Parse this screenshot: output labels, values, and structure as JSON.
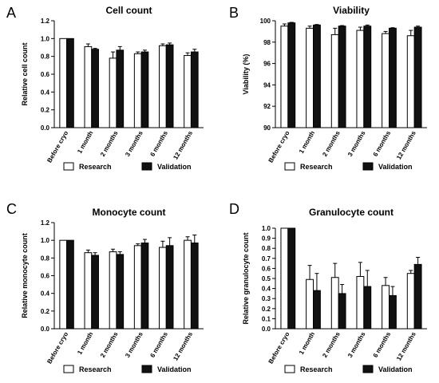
{
  "legend": {
    "research_label": "Research",
    "validation_label": "Validation"
  },
  "colors": {
    "research": "#ffffff",
    "validation": "#111111",
    "axis": "#000000"
  },
  "chart_data": [
    {
      "panel": "A",
      "type": "bar",
      "title": "Cell count",
      "ylabel": "Relative cell count",
      "xlabel": "",
      "ylim": [
        0,
        1.2
      ],
      "yticks": [
        "0.0",
        "0.2",
        "0.4",
        "0.6",
        "0.8",
        "1.0",
        "1.2"
      ],
      "categories": [
        "Before cryo",
        "1 month",
        "2 months",
        "3 months",
        "6 months",
        "12 months"
      ],
      "series": [
        {
          "name": "Research",
          "values": [
            1.0,
            0.91,
            0.78,
            0.83,
            0.92,
            0.81
          ],
          "errors": [
            0.0,
            0.03,
            0.07,
            0.02,
            0.02,
            0.03
          ]
        },
        {
          "name": "Validation",
          "values": [
            1.0,
            0.88,
            0.87,
            0.85,
            0.93,
            0.85
          ],
          "errors": [
            0.0,
            0.01,
            0.04,
            0.02,
            0.02,
            0.03
          ]
        }
      ],
      "legend": "bottom"
    },
    {
      "panel": "B",
      "type": "bar",
      "title": "Viability",
      "ylabel": "Viability (%)",
      "xlabel": "",
      "ylim": [
        90,
        100
      ],
      "yticks": [
        "90",
        "92",
        "94",
        "96",
        "98",
        "100"
      ],
      "categories": [
        "Before cryo",
        "1 month",
        "2 months",
        "3 months",
        "6 months",
        "12 months"
      ],
      "series": [
        {
          "name": "Research",
          "values": [
            99.5,
            99.3,
            98.7,
            99.1,
            98.8,
            98.6
          ],
          "errors": [
            0.2,
            0.2,
            0.6,
            0.3,
            0.2,
            0.5
          ]
        },
        {
          "name": "Validation",
          "values": [
            99.8,
            99.6,
            99.5,
            99.5,
            99.3,
            99.4
          ],
          "errors": [
            0.05,
            0.05,
            0.05,
            0.1,
            0.05,
            0.1
          ]
        }
      ],
      "legend": "bottom"
    },
    {
      "panel": "C",
      "type": "bar",
      "title": "Monocyte count",
      "ylabel": "Relative monocyte count",
      "xlabel": "",
      "ylim": [
        0,
        1.2
      ],
      "yticks": [
        "0.0",
        "0.2",
        "0.4",
        "0.6",
        "0.8",
        "1.0",
        "1.2"
      ],
      "categories": [
        "Before cryo",
        "1 month",
        "2 months",
        "3 months",
        "6 months",
        "12 months"
      ],
      "series": [
        {
          "name": "Research",
          "values": [
            1.0,
            0.86,
            0.87,
            0.94,
            0.92,
            1.0
          ],
          "errors": [
            0.0,
            0.03,
            0.03,
            0.02,
            0.07,
            0.04
          ]
        },
        {
          "name": "Validation",
          "values": [
            1.0,
            0.83,
            0.84,
            0.97,
            0.94,
            0.97
          ],
          "errors": [
            0.0,
            0.03,
            0.03,
            0.04,
            0.09,
            0.09
          ]
        }
      ],
      "legend": "bottom"
    },
    {
      "panel": "D",
      "type": "bar",
      "title": "Granulocyte count",
      "ylabel": "Relative granulocyte count",
      "xlabel": "",
      "ylim": [
        0,
        1.0
      ],
      "yticks": [
        "0.0",
        "0.1",
        "0.2",
        "0.3",
        "0.4",
        "0.5",
        "0.6",
        "0.7",
        "0.8",
        "0.9",
        "1.0"
      ],
      "categories": [
        "Before cryo",
        "1 month",
        "2 months",
        "3 months",
        "6 months",
        "12 months"
      ],
      "series": [
        {
          "name": "Research",
          "values": [
            1.0,
            0.49,
            0.51,
            0.52,
            0.43,
            0.55
          ],
          "errors": [
            0.0,
            0.14,
            0.14,
            0.14,
            0.08,
            0.03
          ]
        },
        {
          "name": "Validation",
          "values": [
            1.0,
            0.38,
            0.35,
            0.42,
            0.33,
            0.64
          ],
          "errors": [
            0.0,
            0.17,
            0.09,
            0.16,
            0.09,
            0.07
          ]
        }
      ],
      "legend": "bottom"
    }
  ]
}
